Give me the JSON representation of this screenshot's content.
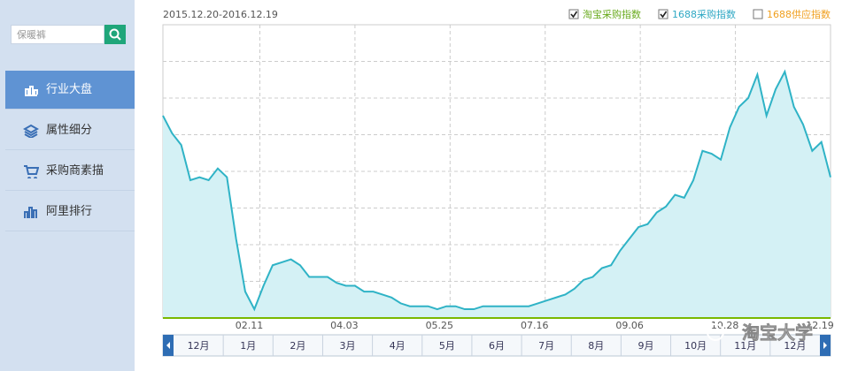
{
  "sidebar": {
    "search_placeholder": "保暖裤",
    "menu": [
      "行业大盘",
      "属性细分",
      "采购商素描",
      "阿里排行"
    ]
  },
  "legend": [
    {
      "label": "淘宝采购指数",
      "color": "#6aab1e",
      "checked": true
    },
    {
      "label": "1688采购指数",
      "color": "#2fa8c4",
      "checked": true
    },
    {
      "label": "1688供应指数",
      "color": "#f0a020",
      "checked": false
    }
  ],
  "chart_data": {
    "type": "area",
    "subtitle": "2015.12.20-2016.12.19",
    "x": [
      0,
      5,
      10,
      15,
      20,
      25,
      30,
      35,
      40,
      45,
      50,
      55,
      60,
      65,
      70,
      75,
      80,
      85,
      90,
      95,
      100,
      105,
      110,
      115,
      120,
      125,
      130,
      135,
      140,
      145,
      150,
      155,
      160,
      165,
      170,
      175,
      180,
      185,
      190,
      195,
      200,
      205,
      210,
      215,
      220,
      225,
      230,
      235,
      240,
      245,
      250,
      255,
      260,
      265,
      270,
      275,
      280,
      285,
      290,
      295,
      300,
      305,
      310,
      315,
      320,
      325,
      330,
      335,
      340,
      345,
      350,
      355,
      360,
      365
    ],
    "series": [
      {
        "color": "#2fb3c6",
        "values": [
          69,
          63,
          59,
          47,
          48,
          47,
          51,
          48,
          27,
          9,
          3,
          11,
          18,
          19,
          20,
          18,
          14,
          14,
          14,
          12,
          11,
          11,
          9,
          9,
          8,
          7,
          5,
          4,
          4,
          4,
          3,
          4,
          4,
          3,
          3,
          4,
          4,
          4,
          4,
          4,
          4,
          5,
          6,
          7,
          8,
          10,
          13,
          14,
          17,
          18,
          23,
          27,
          31,
          32,
          36,
          38,
          42,
          41,
          47,
          57,
          56,
          54,
          65,
          72,
          75,
          83,
          69,
          78,
          84,
          72,
          66,
          57,
          60,
          48
        ]
      }
    ],
    "xlim": [
      0,
      365
    ],
    "ylim": [
      0,
      100
    ],
    "xticks": [
      {
        "value": 53,
        "label": "02.11"
      },
      {
        "value": 105,
        "label": "04.03"
      },
      {
        "value": 157,
        "label": "05.25"
      },
      {
        "value": 209,
        "label": "07.16"
      },
      {
        "value": 261,
        "label": "09.06"
      },
      {
        "value": 313,
        "label": "10.28"
      },
      {
        "value": 365,
        "label": "12.19"
      }
    ],
    "grid": true
  },
  "navigator": [
    "12月",
    "1月",
    "2月",
    "3月",
    "4月",
    "5月",
    "6月",
    "7月",
    "8月",
    "9月",
    "10月",
    "11月",
    "12月"
  ],
  "watermark": "淘宝大学"
}
